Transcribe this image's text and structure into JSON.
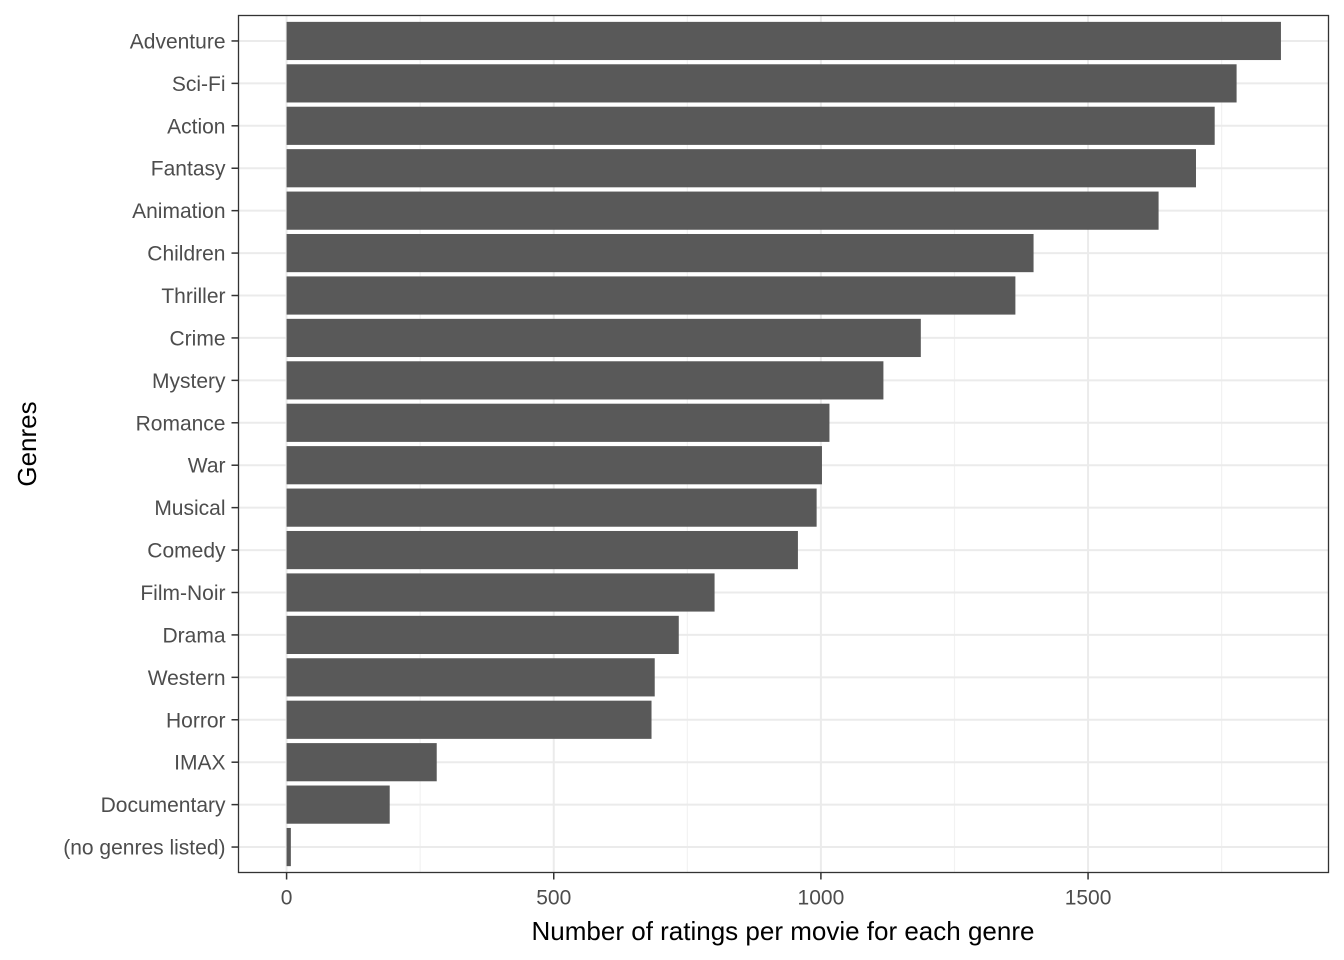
{
  "chart_data": {
    "type": "bar",
    "orientation": "horizontal",
    "title": "",
    "xlabel": "Number of ratings per movie for each genre",
    "ylabel": "Genres",
    "xlim": [
      -90,
      1950
    ],
    "xticks": [
      0,
      500,
      1000,
      1500
    ],
    "xtick_labels": [
      "0",
      "500",
      "1000",
      "1500"
    ],
    "grid": true,
    "legend": "none",
    "bar_color": "#595959",
    "categories": [
      "Adventure",
      "Sci-Fi",
      "Action",
      "Fantasy",
      "Animation",
      "Children",
      "Thriller",
      "Crime",
      "Mystery",
      "Romance",
      "War",
      "Musical",
      "Comedy",
      "Film-Noir",
      "Drama",
      "Western",
      "Horror",
      "IMAX",
      "Documentary",
      "(no genres listed)"
    ],
    "values": [
      1861,
      1778,
      1737,
      1702,
      1632,
      1398,
      1364,
      1187,
      1117,
      1016,
      1002,
      992,
      957,
      801,
      734,
      689,
      683,
      281,
      193,
      8
    ]
  }
}
